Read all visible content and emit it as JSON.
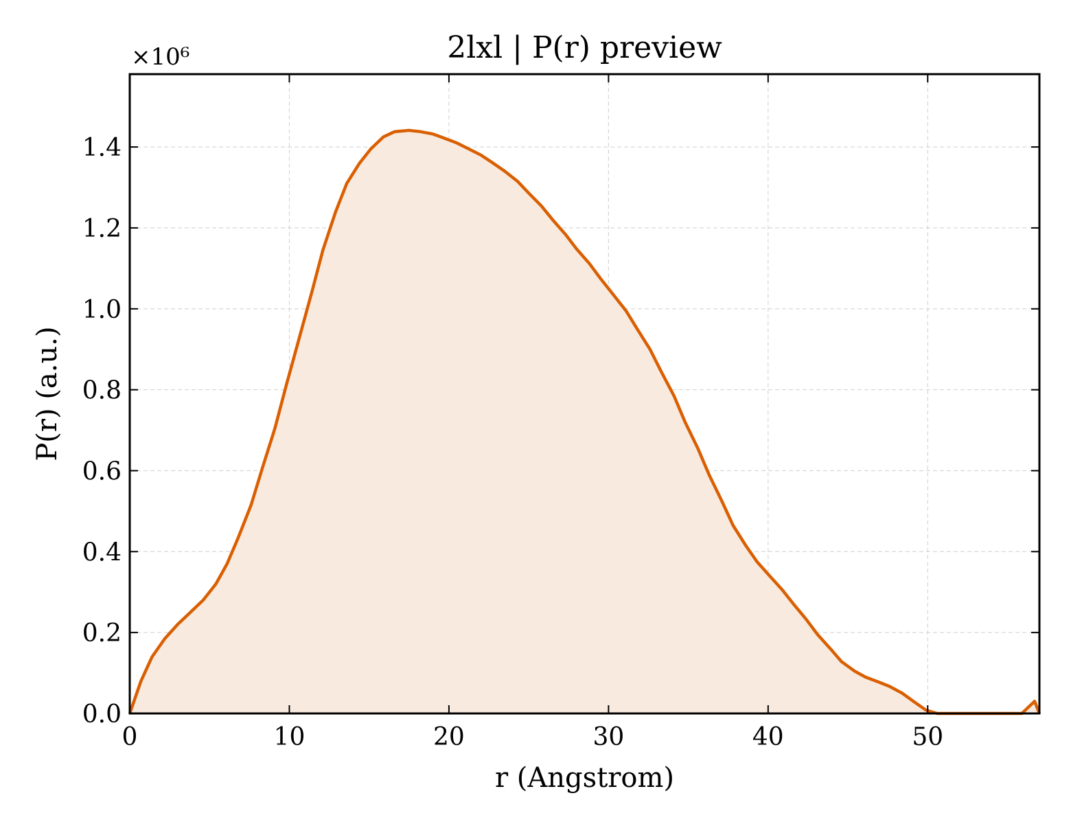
{
  "chart_data": {
    "type": "area",
    "title": "2lxl | P(r) preview",
    "xlabel": "r (Angstrom)",
    "ylabel": "P(r) (a.u.)",
    "y_multiplier_label": "×10⁶",
    "y_multiplier": 1000000,
    "xlim": [
      0,
      57
    ],
    "ylim": [
      0,
      1.58
    ],
    "xticks": [
      0,
      10,
      20,
      30,
      40,
      50
    ],
    "xtick_labels": [
      "0",
      "10",
      "20",
      "30",
      "40",
      "50"
    ],
    "yticks": [
      0.0,
      0.2,
      0.4,
      0.6,
      0.8,
      1.0,
      1.2,
      1.4
    ],
    "ytick_labels": [
      "0.0",
      "0.2",
      "0.4",
      "0.6",
      "0.8",
      "1.0",
      "1.2",
      "1.4"
    ],
    "grid": true,
    "line_color": "#d95f02",
    "fill_color": "#f9eadf",
    "series": [
      {
        "x": [
          0,
          0.7,
          1.4,
          2.2,
          3.0,
          3.8,
          4.6,
          5.4,
          6.1,
          6.8,
          7.6,
          8.3,
          9.1,
          9.8,
          10.6,
          11.4,
          12.1,
          12.9,
          13.6,
          14.4,
          15.1,
          15.9,
          16.6,
          17.5,
          18.2,
          19.0,
          19.7,
          20.5,
          21.2,
          22.0,
          22.7,
          23.5,
          24.3,
          25.0,
          25.8,
          26.5,
          27.3,
          28.0,
          28.8,
          29.5,
          30.3,
          31.1,
          31.8,
          32.6,
          33.3,
          34.1,
          34.8,
          35.6,
          36.3,
          37.1,
          37.8,
          38.6,
          39.3,
          40.1,
          40.9,
          41.6,
          42.4,
          43.1,
          43.9,
          44.6,
          45.4,
          46.1,
          46.9,
          47.6,
          48.4,
          49.1,
          49.9,
          50.6,
          51.4,
          52.1,
          52.9,
          53.3,
          54.4,
          55.1,
          55.9,
          56.7,
          57.0
        ],
        "y": [
          0.0,
          0.08,
          0.14,
          0.185,
          0.22,
          0.25,
          0.28,
          0.32,
          0.37,
          0.435,
          0.515,
          0.605,
          0.705,
          0.81,
          0.925,
          1.04,
          1.145,
          1.24,
          1.31,
          1.36,
          1.395,
          1.425,
          1.438,
          1.441,
          1.438,
          1.432,
          1.422,
          1.41,
          1.396,
          1.38,
          1.362,
          1.34,
          1.315,
          1.286,
          1.254,
          1.22,
          1.184,
          1.148,
          1.112,
          1.075,
          1.035,
          0.995,
          0.95,
          0.9,
          0.845,
          0.785,
          0.72,
          0.655,
          0.59,
          0.525,
          0.465,
          0.415,
          0.375,
          0.34,
          0.305,
          0.27,
          0.232,
          0.195,
          0.16,
          0.128,
          0.105,
          0.09,
          0.078,
          0.067,
          0.05,
          0.03,
          0.008,
          0.0,
          0.0,
          0.0,
          0.0,
          0.0,
          0.0,
          0.0,
          0.0,
          0.03,
          0.0
        ]
      }
    ]
  }
}
